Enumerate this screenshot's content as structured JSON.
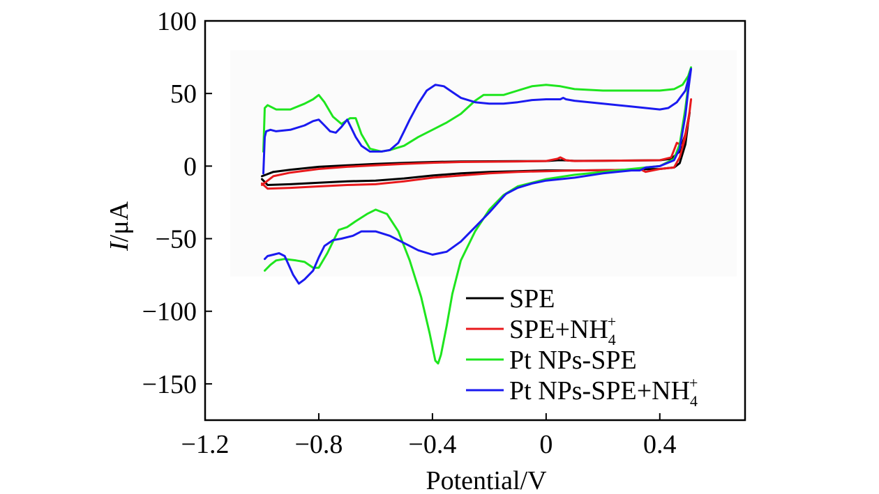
{
  "chart_data": {
    "type": "line",
    "title": "",
    "xlabel": "Potential/V",
    "ylabel_italic": "I",
    "ylabel_unit": "/μA",
    "xlim": [
      -1.2,
      0.7
    ],
    "ylim": [
      -175,
      100
    ],
    "x_ticks": [
      -1.2,
      -0.8,
      -0.4,
      0,
      0.4
    ],
    "x_tick_labels": [
      "−1.2",
      "−0.8",
      "−0.4",
      "0",
      "0.4"
    ],
    "y_ticks": [
      100,
      50,
      0,
      -50,
      -100,
      -150
    ],
    "y_tick_labels": [
      "100",
      "50",
      "0",
      "−50",
      "−100",
      "−150"
    ],
    "grid": false,
    "legend_position": "bottom-right",
    "series": [
      {
        "name": "SPE",
        "label_main": "SPE",
        "label_sup": "",
        "label_sub": "",
        "color": "#000000",
        "points": [
          [
            -1.0,
            -7
          ],
          [
            -0.96,
            -4
          ],
          [
            -0.9,
            -2.5
          ],
          [
            -0.8,
            -0.5
          ],
          [
            -0.7,
            0.5
          ],
          [
            -0.6,
            1.5
          ],
          [
            -0.5,
            2.2
          ],
          [
            -0.4,
            2.8
          ],
          [
            -0.3,
            3.2
          ],
          [
            -0.2,
            3.3
          ],
          [
            -0.1,
            3.4
          ],
          [
            0,
            3.5
          ],
          [
            0.04,
            4
          ],
          [
            0.06,
            4
          ],
          [
            0.1,
            3.6
          ],
          [
            0.2,
            3.7
          ],
          [
            0.3,
            3.8
          ],
          [
            0.4,
            4
          ],
          [
            0.44,
            5
          ],
          [
            0.47,
            10
          ],
          [
            0.49,
            22
          ],
          [
            0.505,
            37
          ],
          [
            0.5,
            30
          ],
          [
            0.49,
            15
          ],
          [
            0.47,
            2
          ],
          [
            0.45,
            -1
          ],
          [
            0.4,
            -2
          ],
          [
            0.35,
            -2.2
          ],
          [
            0.3,
            -2.5
          ],
          [
            0.2,
            -2.8
          ],
          [
            0.1,
            -3
          ],
          [
            0,
            -3
          ],
          [
            -0.1,
            -3.5
          ],
          [
            -0.2,
            -4
          ],
          [
            -0.3,
            -5
          ],
          [
            -0.4,
            -6.5
          ],
          [
            -0.5,
            -8.5
          ],
          [
            -0.6,
            -10
          ],
          [
            -0.7,
            -10.5
          ],
          [
            -0.8,
            -11.5
          ],
          [
            -0.9,
            -12.5
          ],
          [
            -0.98,
            -13
          ],
          [
            -1.0,
            -9
          ]
        ]
      },
      {
        "name": "SPE+NH4+",
        "label_main": "SPE+NH",
        "label_sup": "+",
        "label_sub": "4",
        "color": "#e8191c",
        "points": [
          [
            -1.0,
            -13
          ],
          [
            -0.96,
            -7
          ],
          [
            -0.9,
            -4.5
          ],
          [
            -0.8,
            -2
          ],
          [
            -0.7,
            -0.5
          ],
          [
            -0.6,
            0.5
          ],
          [
            -0.5,
            1.5
          ],
          [
            -0.4,
            2.3
          ],
          [
            -0.3,
            2.8
          ],
          [
            -0.2,
            3
          ],
          [
            -0.1,
            3.2
          ],
          [
            0,
            3.5
          ],
          [
            0.04,
            5
          ],
          [
            0.05,
            6
          ],
          [
            0.07,
            4
          ],
          [
            0.1,
            3.5
          ],
          [
            0.2,
            3.7
          ],
          [
            0.3,
            3.8
          ],
          [
            0.4,
            4
          ],
          [
            0.44,
            6
          ],
          [
            0.46,
            16
          ],
          [
            0.48,
            14
          ],
          [
            0.5,
            30
          ],
          [
            0.51,
            46
          ],
          [
            0.505,
            38
          ],
          [
            0.49,
            20
          ],
          [
            0.47,
            6
          ],
          [
            0.45,
            -1
          ],
          [
            0.4,
            -2
          ],
          [
            0.35,
            -4
          ],
          [
            0.33,
            -2
          ],
          [
            0.3,
            -2.5
          ],
          [
            0.2,
            -2.8
          ],
          [
            0.1,
            -3
          ],
          [
            0,
            -3.5
          ],
          [
            -0.1,
            -4
          ],
          [
            -0.2,
            -5
          ],
          [
            -0.3,
            -6.5
          ],
          [
            -0.4,
            -8
          ],
          [
            -0.5,
            -10.5
          ],
          [
            -0.6,
            -12.5
          ],
          [
            -0.7,
            -13
          ],
          [
            -0.8,
            -14
          ],
          [
            -0.9,
            -15
          ],
          [
            -0.98,
            -15.5
          ],
          [
            -1.0,
            -12
          ]
        ]
      },
      {
        "name": "Pt NPs-SPE",
        "label_main": "Pt NPs-SPE",
        "label_sup": "",
        "label_sub": "",
        "color": "#1ee51e",
        "points": [
          [
            -0.995,
            10
          ],
          [
            -0.99,
            40
          ],
          [
            -0.98,
            42
          ],
          [
            -0.95,
            39
          ],
          [
            -0.9,
            39
          ],
          [
            -0.85,
            43
          ],
          [
            -0.82,
            46
          ],
          [
            -0.8,
            49
          ],
          [
            -0.78,
            44
          ],
          [
            -0.75,
            34
          ],
          [
            -0.72,
            29
          ],
          [
            -0.69,
            33
          ],
          [
            -0.67,
            33
          ],
          [
            -0.65,
            22
          ],
          [
            -0.62,
            12
          ],
          [
            -0.58,
            10
          ],
          [
            -0.55,
            11
          ],
          [
            -0.5,
            14
          ],
          [
            -0.45,
            20
          ],
          [
            -0.4,
            25
          ],
          [
            -0.35,
            30
          ],
          [
            -0.3,
            36
          ],
          [
            -0.25,
            45
          ],
          [
            -0.22,
            49
          ],
          [
            -0.2,
            49
          ],
          [
            -0.15,
            49
          ],
          [
            -0.1,
            52
          ],
          [
            -0.05,
            55
          ],
          [
            0,
            56
          ],
          [
            0.05,
            55
          ],
          [
            0.1,
            53
          ],
          [
            0.2,
            52
          ],
          [
            0.3,
            52
          ],
          [
            0.4,
            52
          ],
          [
            0.45,
            53
          ],
          [
            0.48,
            56
          ],
          [
            0.5,
            62
          ],
          [
            0.51,
            68
          ],
          [
            0.5,
            55
          ],
          [
            0.49,
            40
          ],
          [
            0.47,
            15
          ],
          [
            0.45,
            5
          ],
          [
            0.4,
            0
          ],
          [
            0.3,
            -2
          ],
          [
            0.2,
            -4
          ],
          [
            0.1,
            -6
          ],
          [
            0,
            -9
          ],
          [
            -0.1,
            -14
          ],
          [
            -0.15,
            -20
          ],
          [
            -0.2,
            -30
          ],
          [
            -0.25,
            -45
          ],
          [
            -0.3,
            -65
          ],
          [
            -0.33,
            -88
          ],
          [
            -0.35,
            -110
          ],
          [
            -0.37,
            -130
          ],
          [
            -0.38,
            -136
          ],
          [
            -0.39,
            -134
          ],
          [
            -0.41,
            -115
          ],
          [
            -0.44,
            -90
          ],
          [
            -0.48,
            -65
          ],
          [
            -0.52,
            -45
          ],
          [
            -0.56,
            -33
          ],
          [
            -0.6,
            -30
          ],
          [
            -0.63,
            -33
          ],
          [
            -0.67,
            -38
          ],
          [
            -0.7,
            -42
          ],
          [
            -0.73,
            -44
          ],
          [
            -0.77,
            -60
          ],
          [
            -0.8,
            -70
          ],
          [
            -0.82,
            -70
          ],
          [
            -0.85,
            -66
          ],
          [
            -0.88,
            -65
          ],
          [
            -0.92,
            -64
          ],
          [
            -0.95,
            -65
          ],
          [
            -0.97,
            -68
          ],
          [
            -0.99,
            -72
          ]
        ]
      },
      {
        "name": "Pt NPs-SPE+NH4+",
        "label_main": "Pt NPs-SPE+NH",
        "label_sup": "+",
        "label_sub": "4",
        "color": "#1a1af0",
        "points": [
          [
            -0.995,
            -5
          ],
          [
            -0.99,
            20
          ],
          [
            -0.985,
            24
          ],
          [
            -0.97,
            25
          ],
          [
            -0.95,
            24
          ],
          [
            -0.9,
            25
          ],
          [
            -0.85,
            28
          ],
          [
            -0.82,
            31
          ],
          [
            -0.8,
            32
          ],
          [
            -0.78,
            28
          ],
          [
            -0.76,
            24
          ],
          [
            -0.74,
            23
          ],
          [
            -0.72,
            27
          ],
          [
            -0.7,
            32
          ],
          [
            -0.69,
            28
          ],
          [
            -0.67,
            20
          ],
          [
            -0.65,
            14
          ],
          [
            -0.62,
            10
          ],
          [
            -0.58,
            10
          ],
          [
            -0.55,
            11
          ],
          [
            -0.52,
            16
          ],
          [
            -0.5,
            24
          ],
          [
            -0.48,
            32
          ],
          [
            -0.45,
            43
          ],
          [
            -0.42,
            52
          ],
          [
            -0.39,
            56
          ],
          [
            -0.36,
            55
          ],
          [
            -0.33,
            51
          ],
          [
            -0.3,
            47
          ],
          [
            -0.25,
            44
          ],
          [
            -0.2,
            43
          ],
          [
            -0.15,
            43
          ],
          [
            -0.1,
            44
          ],
          [
            -0.05,
            45.5
          ],
          [
            0,
            46
          ],
          [
            0.05,
            46
          ],
          [
            0.06,
            47
          ],
          [
            0.07,
            46
          ],
          [
            0.1,
            45
          ],
          [
            0.2,
            43
          ],
          [
            0.3,
            41
          ],
          [
            0.4,
            39
          ],
          [
            0.43,
            40
          ],
          [
            0.46,
            44
          ],
          [
            0.49,
            52
          ],
          [
            0.51,
            67
          ],
          [
            0.5,
            52
          ],
          [
            0.49,
            35
          ],
          [
            0.47,
            12
          ],
          [
            0.45,
            4
          ],
          [
            0.4,
            0
          ],
          [
            0.35,
            -1
          ],
          [
            0.33,
            -3
          ],
          [
            0.3,
            -3
          ],
          [
            0.2,
            -5
          ],
          [
            0.1,
            -8
          ],
          [
            0,
            -10
          ],
          [
            -0.05,
            -12
          ],
          [
            -0.1,
            -15
          ],
          [
            -0.13,
            -18
          ],
          [
            -0.14,
            -19
          ],
          [
            -0.15,
            -21
          ],
          [
            -0.2,
            -32
          ],
          [
            -0.25,
            -42
          ],
          [
            -0.3,
            -52
          ],
          [
            -0.35,
            -59
          ],
          [
            -0.4,
            -61
          ],
          [
            -0.45,
            -58
          ],
          [
            -0.5,
            -53
          ],
          [
            -0.55,
            -48
          ],
          [
            -0.6,
            -45
          ],
          [
            -0.65,
            -45
          ],
          [
            -0.68,
            -48
          ],
          [
            -0.72,
            -50
          ],
          [
            -0.75,
            -51
          ],
          [
            -0.78,
            -55
          ],
          [
            -0.8,
            -63
          ],
          [
            -0.82,
            -72
          ],
          [
            -0.85,
            -78
          ],
          [
            -0.87,
            -81
          ],
          [
            -0.89,
            -75
          ],
          [
            -0.92,
            -62
          ],
          [
            -0.94,
            -60
          ],
          [
            -0.96,
            -61
          ],
          [
            -0.98,
            -62
          ],
          [
            -0.99,
            -64
          ]
        ]
      }
    ]
  }
}
